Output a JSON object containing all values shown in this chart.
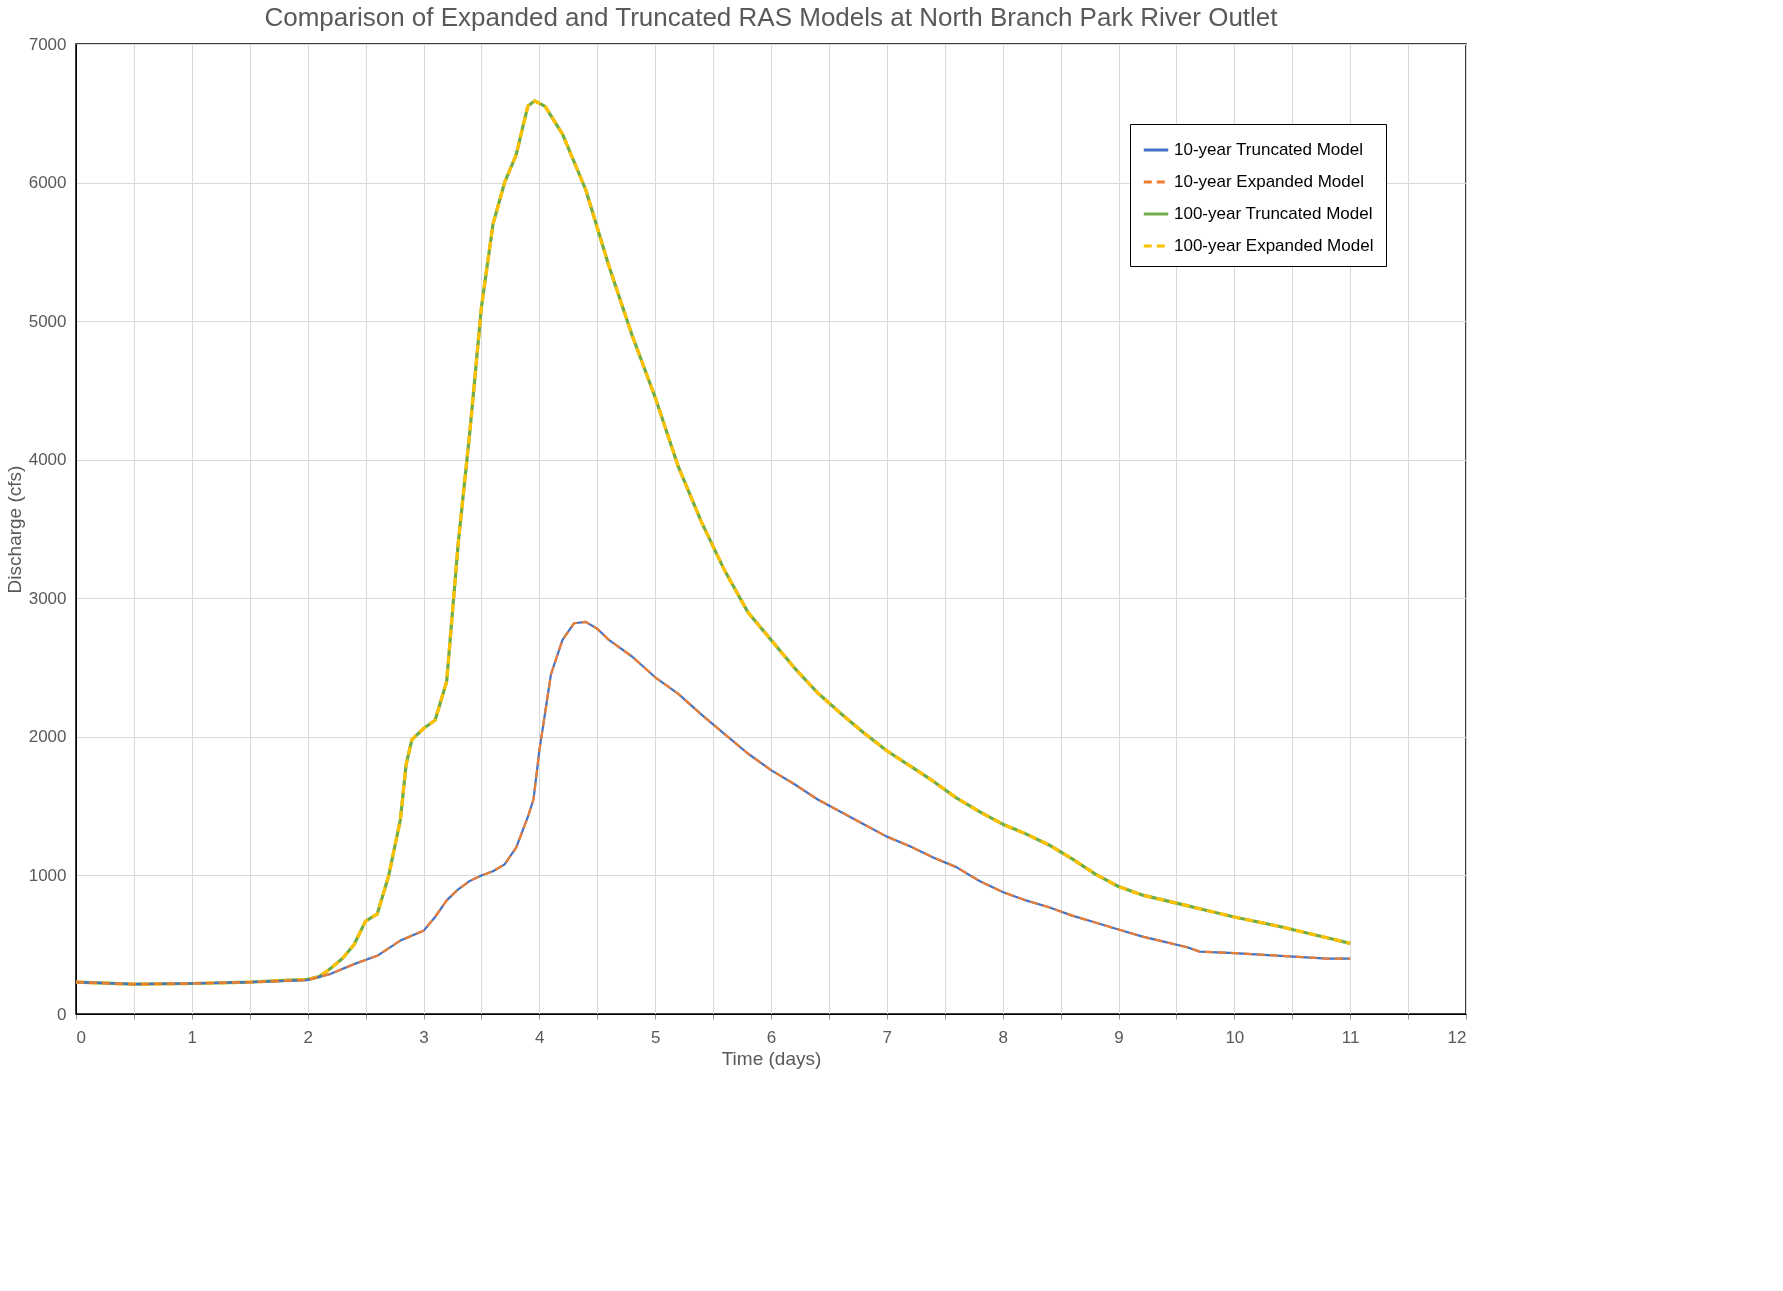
{
  "chart_data": {
    "type": "line",
    "title": "Comparison of Expanded and Truncated RAS Models at North Branch Park River Outlet",
    "xlabel": "Time (days)",
    "ylabel": "Discharge (cfs)",
    "xlim": [
      0,
      12
    ],
    "ylim": [
      0,
      7000
    ],
    "xticks": [
      0,
      {
        "value": 0.5,
        "label": null
      },
      1,
      {
        "value": 1.5,
        "label": null
      },
      2,
      {
        "value": 2.5,
        "label": null
      },
      3,
      {
        "value": 3.5,
        "label": null
      },
      4,
      {
        "value": 4.5,
        "label": null
      },
      5,
      {
        "value": 5.5,
        "label": null
      },
      6,
      {
        "value": 6.5,
        "label": null
      },
      7,
      {
        "value": 7.5,
        "label": null
      },
      8,
      {
        "value": 8.5,
        "label": null
      },
      9,
      {
        "value": 9.5,
        "label": null
      },
      10,
      {
        "value": 10.5,
        "label": null
      },
      11,
      {
        "value": 11.5,
        "label": null
      },
      12
    ],
    "yticks": [
      0,
      1000,
      2000,
      3000,
      4000,
      5000,
      6000,
      7000
    ],
    "grid": true,
    "legend": "top right",
    "marker": "none",
    "series": [
      {
        "name": "10-year Truncated Model",
        "color": "#4472c4",
        "line_style": "solid",
        "x": [
          0,
          0.5,
          1,
          1.5,
          2,
          2.2,
          2.4,
          2.6,
          2.8,
          3.0,
          3.1,
          3.2,
          3.3,
          3.4,
          3.5,
          3.6,
          3.7,
          3.8,
          3.9,
          3.95,
          4.0,
          4.1,
          4.2,
          4.3,
          4.4,
          4.5,
          4.6,
          4.8,
          5.0,
          5.2,
          5.4,
          5.6,
          5.8,
          6.0,
          6.2,
          6.4,
          6.6,
          6.8,
          7.0,
          7.2,
          7.4,
          7.6,
          7.8,
          8.0,
          8.2,
          8.4,
          8.6,
          8.8,
          9.0,
          9.2,
          9.4,
          9.6,
          9.7,
          10.0,
          10.4,
          10.8,
          11.0
        ],
        "values": [
          230,
          215,
          220,
          230,
          245,
          290,
          360,
          420,
          530,
          600,
          700,
          820,
          900,
          960,
          1000,
          1030,
          1080,
          1200,
          1420,
          1550,
          1900,
          2450,
          2700,
          2820,
          2830,
          2780,
          2700,
          2580,
          2430,
          2310,
          2160,
          2020,
          1880,
          1760,
          1660,
          1550,
          1460,
          1370,
          1280,
          1210,
          1130,
          1060,
          960,
          880,
          820,
          770,
          710,
          660,
          610,
          560,
          520,
          480,
          450,
          440,
          420,
          400,
          400
        ]
      },
      {
        "name": "10-year Expanded Model",
        "color": "#ed7d31",
        "line_style": "dashed",
        "x": [
          0,
          0.5,
          1,
          1.5,
          2,
          2.2,
          2.4,
          2.6,
          2.8,
          3.0,
          3.1,
          3.2,
          3.3,
          3.4,
          3.5,
          3.6,
          3.7,
          3.8,
          3.9,
          3.95,
          4.0,
          4.1,
          4.2,
          4.3,
          4.4,
          4.5,
          4.6,
          4.8,
          5.0,
          5.2,
          5.4,
          5.6,
          5.8,
          6.0,
          6.2,
          6.4,
          6.6,
          6.8,
          7.0,
          7.2,
          7.4,
          7.6,
          7.8,
          8.0,
          8.2,
          8.4,
          8.6,
          8.8,
          9.0,
          9.2,
          9.4,
          9.6,
          9.7,
          10.0,
          10.4,
          10.8,
          11.0
        ],
        "values": [
          230,
          215,
          220,
          230,
          245,
          290,
          360,
          420,
          530,
          600,
          700,
          820,
          900,
          960,
          1000,
          1030,
          1080,
          1200,
          1420,
          1550,
          1900,
          2450,
          2700,
          2820,
          2830,
          2780,
          2700,
          2580,
          2430,
          2310,
          2160,
          2020,
          1880,
          1760,
          1660,
          1550,
          1460,
          1370,
          1280,
          1210,
          1130,
          1060,
          960,
          880,
          820,
          770,
          710,
          660,
          610,
          560,
          520,
          480,
          450,
          440,
          420,
          400,
          400
        ]
      },
      {
        "name": "100-year Truncated Model",
        "color": "#70ad47",
        "line_style": "solid",
        "x": [
          0,
          0.5,
          1,
          1.5,
          2,
          2.1,
          2.2,
          2.3,
          2.4,
          2.5,
          2.6,
          2.7,
          2.8,
          2.85,
          2.9,
          3.0,
          3.1,
          3.2,
          3.3,
          3.4,
          3.5,
          3.6,
          3.7,
          3.8,
          3.9,
          3.96,
          4.05,
          4.2,
          4.4,
          4.6,
          4.8,
          5.0,
          5.2,
          5.4,
          5.6,
          5.8,
          6.0,
          6.2,
          6.4,
          6.6,
          6.8,
          7.0,
          7.2,
          7.4,
          7.6,
          7.8,
          8.0,
          8.2,
          8.4,
          8.6,
          8.8,
          9.0,
          9.2,
          9.4,
          9.6,
          9.8,
          10.0,
          10.4,
          10.8,
          11.0
        ],
        "values": [
          230,
          215,
          220,
          230,
          250,
          270,
          330,
          400,
          500,
          670,
          720,
          1000,
          1400,
          1800,
          1980,
          2060,
          2120,
          2400,
          3400,
          4200,
          5100,
          5700,
          6000,
          6200,
          6550,
          6590,
          6550,
          6350,
          5950,
          5400,
          4900,
          4450,
          3950,
          3550,
          3200,
          2900,
          2700,
          2500,
          2320,
          2170,
          2030,
          1900,
          1790,
          1680,
          1560,
          1460,
          1370,
          1300,
          1220,
          1120,
          1010,
          920,
          860,
          820,
          780,
          740,
          700,
          630,
          550,
          510
        ]
      },
      {
        "name": "100-year Expanded Model",
        "color": "#ffc000",
        "line_style": "dashed",
        "x": [
          0,
          0.5,
          1,
          1.5,
          2,
          2.1,
          2.2,
          2.3,
          2.4,
          2.5,
          2.6,
          2.7,
          2.8,
          2.85,
          2.9,
          3.0,
          3.1,
          3.2,
          3.3,
          3.4,
          3.5,
          3.6,
          3.7,
          3.8,
          3.9,
          3.96,
          4.05,
          4.2,
          4.4,
          4.6,
          4.8,
          5.0,
          5.2,
          5.4,
          5.6,
          5.8,
          6.0,
          6.2,
          6.4,
          6.6,
          6.8,
          7.0,
          7.2,
          7.4,
          7.6,
          7.8,
          8.0,
          8.2,
          8.4,
          8.6,
          8.8,
          9.0,
          9.2,
          9.4,
          9.6,
          9.8,
          10.0,
          10.4,
          10.8,
          11.0
        ],
        "values": [
          230,
          215,
          220,
          230,
          250,
          270,
          330,
          400,
          500,
          670,
          720,
          1000,
          1400,
          1800,
          1980,
          2060,
          2120,
          2400,
          3400,
          4200,
          5100,
          5700,
          6000,
          6200,
          6550,
          6590,
          6550,
          6350,
          5950,
          5400,
          4900,
          4450,
          3950,
          3550,
          3200,
          2900,
          2700,
          2500,
          2320,
          2170,
          2030,
          1900,
          1790,
          1680,
          1560,
          1460,
          1370,
          1300,
          1220,
          1120,
          1010,
          920,
          860,
          820,
          780,
          740,
          700,
          630,
          550,
          510
        ]
      }
    ]
  }
}
